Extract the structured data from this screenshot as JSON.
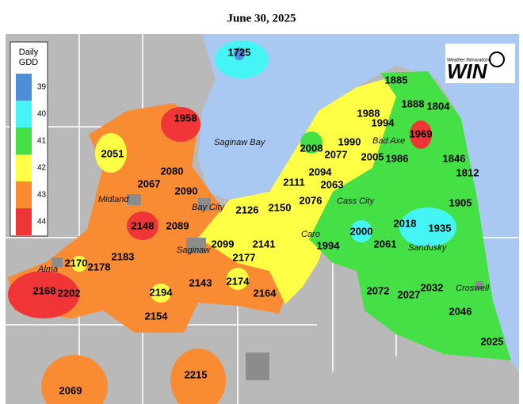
{
  "header": {
    "title": "June 30, 2025"
  },
  "legend": {
    "title_lines": [
      "Daily",
      "GDD"
    ],
    "items": [
      {
        "label": "39",
        "color": "#4a8fd8"
      },
      {
        "label": "40",
        "color": "#45f5f5"
      },
      {
        "label": "41",
        "color": "#45e045"
      },
      {
        "label": "42",
        "color": "#ffff45"
      },
      {
        "label": "43",
        "color": "#f98b33"
      },
      {
        "label": "44",
        "color": "#ef3535"
      }
    ]
  },
  "logo": {
    "tagline": "Weather INnovations",
    "name": "WIN"
  },
  "places": [
    "Saginaw Bay",
    "Midland",
    "Bay City",
    "Saginaw",
    "Alma",
    "Caro",
    "Cass City",
    "Bad Axe",
    "Sandusky",
    "Croswell"
  ],
  "stations": [
    1725,
    1885,
    1888,
    1804,
    1988,
    1958,
    1994,
    1990,
    1969,
    2051,
    2008,
    2077,
    2005,
    1986,
    1846,
    1812,
    2080,
    2094,
    2067,
    2111,
    2063,
    2090,
    2076,
    2150,
    2126,
    1905,
    2018,
    1935,
    2148,
    2089,
    2000,
    2099,
    2141,
    1994,
    2061,
    2183,
    2170,
    2178,
    2177,
    2143,
    2174,
    2072,
    2032,
    2027,
    2168,
    2202,
    2194,
    2164,
    2046,
    2154,
    2025,
    2215,
    2069
  ]
}
